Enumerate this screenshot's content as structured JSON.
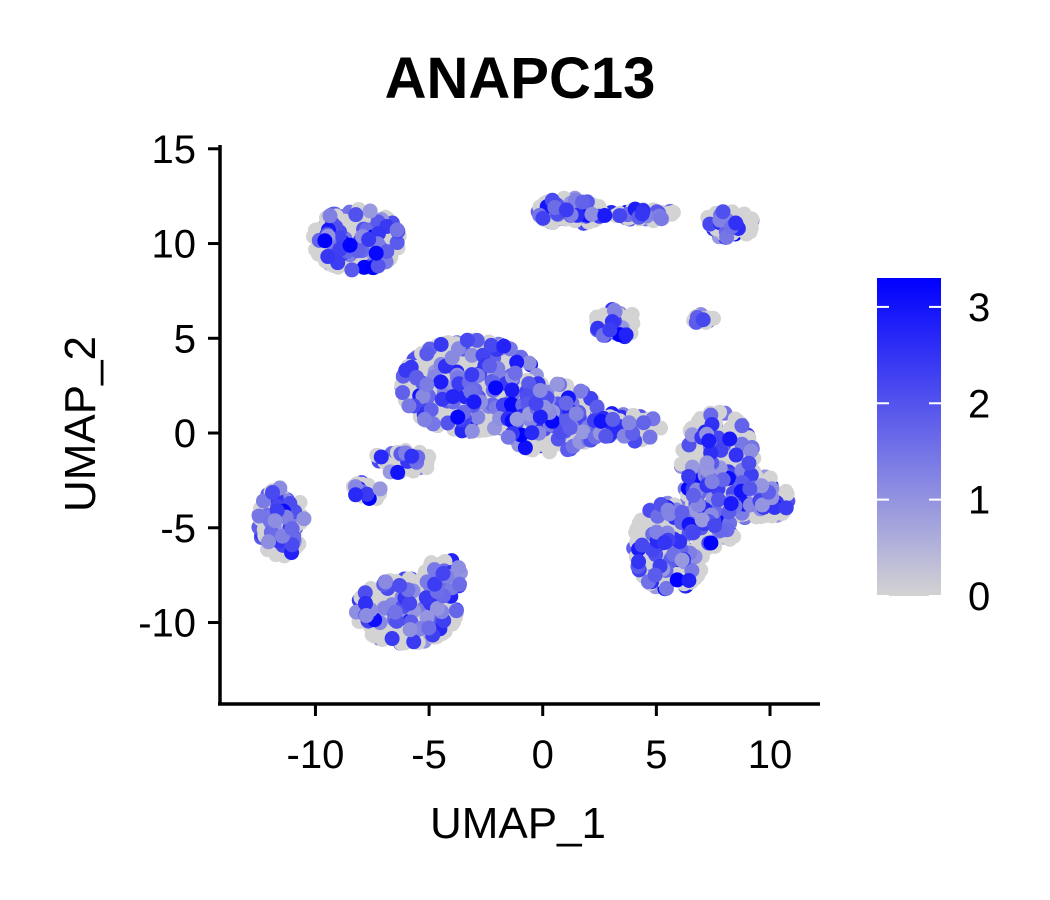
{
  "chart_data": {
    "type": "scatter",
    "title": "ANAPC13",
    "xlabel": "UMAP_1",
    "ylabel": "UMAP_2",
    "xlim": [
      -14.2,
      12.2
    ],
    "ylim": [
      -14.3,
      15.2
    ],
    "x_ticks": [
      -10,
      -5,
      0,
      5,
      10
    ],
    "y_ticks": [
      -10,
      -5,
      0,
      5,
      10,
      15
    ],
    "grid": false,
    "legend": {
      "placement": "right",
      "type": "colorbar",
      "range": [
        0,
        3.3
      ],
      "ticks": [
        0,
        1,
        2,
        3
      ],
      "low_color": "#d3d3d3",
      "high_color": "#0000ff"
    },
    "clusters": [
      {
        "cx": -8.2,
        "cy": 10.2,
        "rx": 1.9,
        "ry": 1.6,
        "n": 260
      },
      {
        "cx": 1.2,
        "cy": 11.7,
        "rx": 1.4,
        "ry": 0.7,
        "n": 130
      },
      {
        "cx": 4.2,
        "cy": 11.5,
        "rx": 1.7,
        "ry": 0.35,
        "n": 50
      },
      {
        "cx": 8.2,
        "cy": 11.0,
        "rx": 1.1,
        "ry": 0.7,
        "n": 70
      },
      {
        "cx": 3.2,
        "cy": 5.8,
        "rx": 0.9,
        "ry": 0.8,
        "n": 50
      },
      {
        "cx": 7.0,
        "cy": 6.0,
        "rx": 0.6,
        "ry": 0.25,
        "n": 14
      },
      {
        "cx": -3.2,
        "cy": 2.5,
        "rx": 3.0,
        "ry": 2.4,
        "n": 520
      },
      {
        "cx": 0.3,
        "cy": 0.8,
        "rx": 2.2,
        "ry": 1.8,
        "n": 320
      },
      {
        "cx": 3.2,
        "cy": 0.3,
        "rx": 2.0,
        "ry": 0.8,
        "n": 110
      },
      {
        "cx": -6.2,
        "cy": -1.5,
        "rx": 1.3,
        "ry": 0.6,
        "n": 50
      },
      {
        "cx": -7.8,
        "cy": -3.1,
        "rx": 0.7,
        "ry": 0.5,
        "n": 30
      },
      {
        "cx": -11.5,
        "cy": -4.7,
        "rx": 1.0,
        "ry": 1.8,
        "n": 150
      },
      {
        "cx": -6.0,
        "cy": -9.4,
        "rx": 2.2,
        "ry": 1.7,
        "n": 300
      },
      {
        "cx": -4.4,
        "cy": -7.6,
        "rx": 0.8,
        "ry": 1.0,
        "n": 60
      },
      {
        "cx": 7.7,
        "cy": -1.7,
        "rx": 1.6,
        "ry": 2.8,
        "n": 280
      },
      {
        "cx": 9.6,
        "cy": -3.5,
        "rx": 1.2,
        "ry": 1.2,
        "n": 130
      },
      {
        "cx": 5.6,
        "cy": -6.0,
        "rx": 1.6,
        "ry": 2.3,
        "n": 240
      },
      {
        "cx": 7.4,
        "cy": -4.5,
        "rx": 1.3,
        "ry": 1.5,
        "n": 120
      }
    ]
  }
}
